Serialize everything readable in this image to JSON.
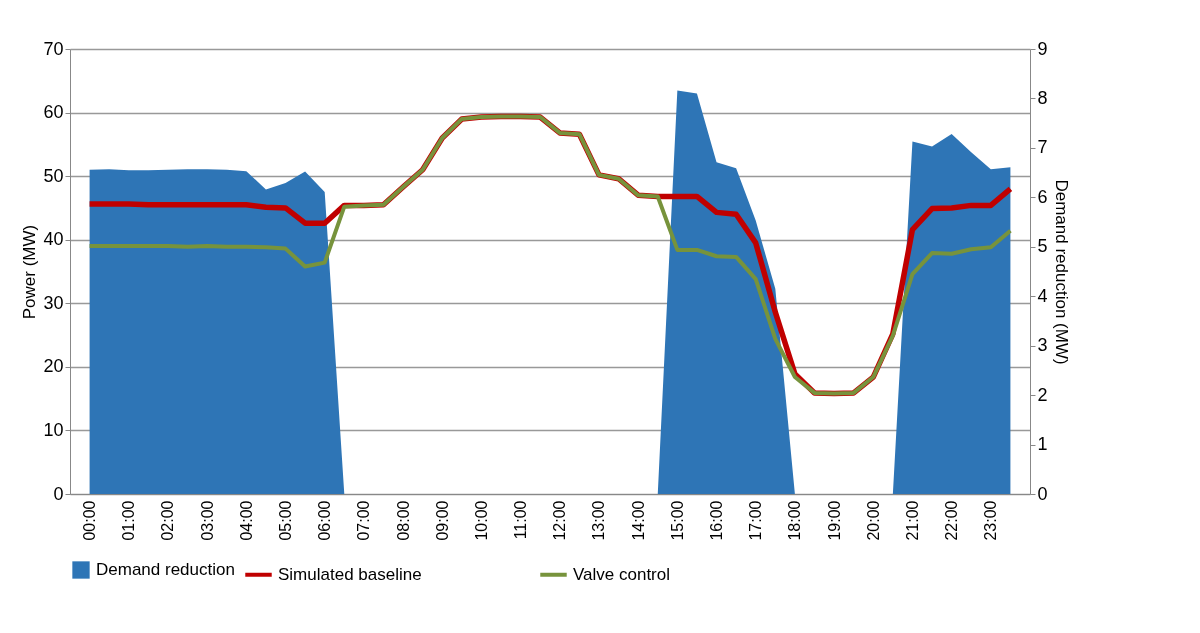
{
  "chart_data": {
    "type": "line",
    "ylabel": "Power (MW)",
    "y2label": "Demand reduction (MW)",
    "categories": [
      "00:00",
      null,
      "01:00",
      null,
      "02:00",
      null,
      "03:00",
      null,
      "04:00",
      null,
      "05:00",
      null,
      "06:00",
      null,
      "07:00",
      null,
      "08:00",
      null,
      "09:00",
      null,
      "10:00",
      null,
      "11:00",
      null,
      "12:00",
      null,
      "13:00",
      null,
      "14:00",
      null,
      "15:00",
      null,
      "16:00",
      null,
      "17:00",
      null,
      "18:00",
      null,
      "19:00",
      null,
      "20:00",
      null,
      "21:00",
      null,
      "22:00",
      null,
      "23:00",
      null
    ],
    "series": [
      {
        "name": "Demand reduction",
        "type": "area",
        "axis": "y2",
        "color": "#2e75b6",
        "values": [
          6.56,
          6.57,
          6.55,
          6.55,
          6.56,
          6.57,
          6.57,
          6.56,
          6.53,
          6.16,
          6.29,
          6.52,
          6.11,
          0,
          0,
          0,
          0,
          0,
          0,
          0,
          0,
          0,
          0,
          0,
          0,
          0,
          0,
          0,
          0,
          0,
          8.16,
          8.1,
          6.71,
          6.59,
          5.53,
          4.15,
          0,
          0,
          0,
          0,
          0,
          0,
          7.13,
          7.03,
          7.28,
          6.91,
          6.57,
          6.61
        ]
      },
      {
        "name": "Simulated baseline",
        "color": "#c00000",
        "values": [
          45.6,
          45.6,
          45.6,
          45.5,
          45.5,
          45.5,
          45.5,
          45.5,
          45.5,
          45.1,
          45.0,
          42.6,
          42.6,
          45.4,
          45.4,
          45.5,
          48.3,
          51.0,
          56.0,
          59.0,
          59.3,
          59.4,
          59.4,
          59.3,
          56.8,
          56.6,
          50.2,
          49.6,
          47.0,
          46.8,
          46.8,
          46.8,
          44.3,
          44.0,
          39.5,
          28.6,
          18.9,
          15.9,
          15.8,
          15.9,
          18.4,
          25.2,
          41.6,
          44.9,
          45.0,
          45.4,
          45.4,
          48.0
        ]
      },
      {
        "name": "Valve control",
        "color": "#77933c",
        "values": [
          39.0,
          39.0,
          39.0,
          39.0,
          39.0,
          38.9,
          39.0,
          38.9,
          38.9,
          38.8,
          38.6,
          35.8,
          36.4,
          45.2,
          45.4,
          45.5,
          48.3,
          51.0,
          56.0,
          59.0,
          59.3,
          59.4,
          59.4,
          59.3,
          56.8,
          56.6,
          50.2,
          49.6,
          47.0,
          46.8,
          38.4,
          38.4,
          37.4,
          37.3,
          33.8,
          24.4,
          18.4,
          15.9,
          15.8,
          15.9,
          18.4,
          24.9,
          34.6,
          37.9,
          37.8,
          38.5,
          38.8,
          41.4
        ]
      }
    ],
    "ylim": [
      0,
      70
    ],
    "yticks": [
      0,
      10,
      20,
      30,
      40,
      50,
      60,
      70
    ],
    "y2lim": [
      0,
      9
    ],
    "y2ticks": [
      0,
      1,
      2,
      3,
      4,
      5,
      6,
      7,
      8,
      9
    ],
    "grid": "y",
    "legend": "bottom"
  }
}
